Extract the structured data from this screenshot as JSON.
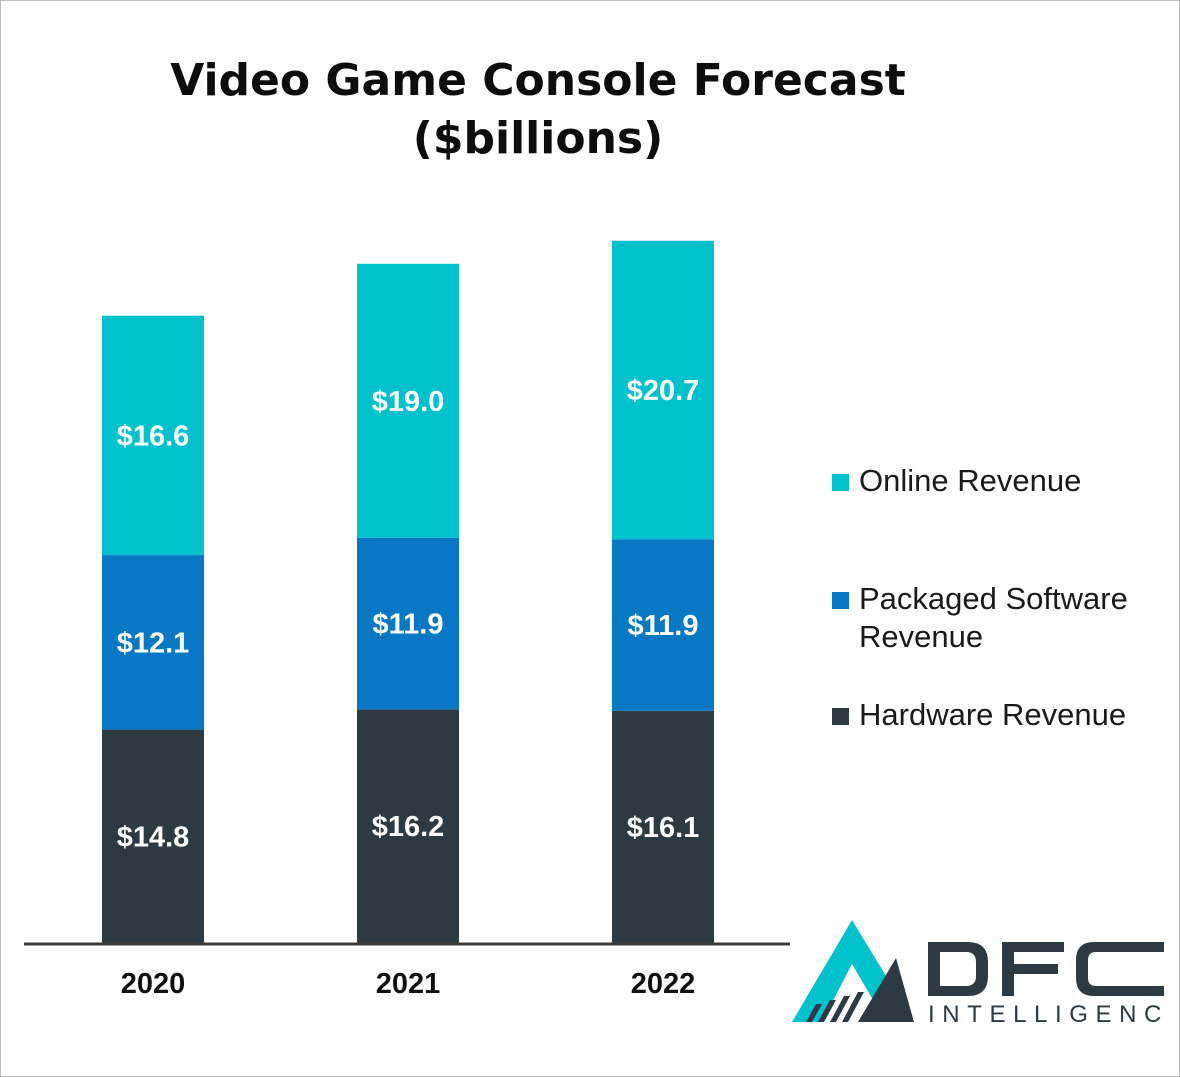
{
  "title_lines": [
    "Video Game Console Forecast",
    "($billions)"
  ],
  "chart_data": {
    "type": "bar",
    "stacked": true,
    "title": "Video Game Console Forecast ($billions)",
    "categories": [
      "2020",
      "2021",
      "2022"
    ],
    "series": [
      {
        "name": "Hardware Revenue",
        "values": [
          14.8,
          16.2,
          16.1
        ],
        "labels": [
          "$14.8",
          "$16.2",
          "$16.1"
        ],
        "color": "#2d3a42"
      },
      {
        "name": "Packaged Software Revenue",
        "values": [
          12.1,
          11.9,
          11.9
        ],
        "labels": [
          "$12.1",
          "$11.9",
          "$11.9"
        ],
        "color": "#0878c5"
      },
      {
        "name": "Online Revenue",
        "values": [
          16.6,
          19.0,
          20.7
        ],
        "labels": [
          "$16.6",
          "$19.0",
          "$20.7"
        ],
        "color": "#00c1cc"
      }
    ],
    "legend_position": "right",
    "grid": false,
    "ylim": [
      0,
      50
    ]
  },
  "legend": [
    {
      "label_lines": [
        "Online Revenue"
      ],
      "color": "#00c1cc"
    },
    {
      "label_lines": [
        "Packaged Software",
        "Revenue"
      ],
      "color": "#0878c5"
    },
    {
      "label_lines": [
        "Hardware Revenue"
      ],
      "color": "#2d3a42"
    }
  ],
  "logo": {
    "text": "DFC",
    "subtext": "INTELLIGENCE",
    "accent_color": "#00c1cc",
    "dark_color": "#2d3a42"
  }
}
